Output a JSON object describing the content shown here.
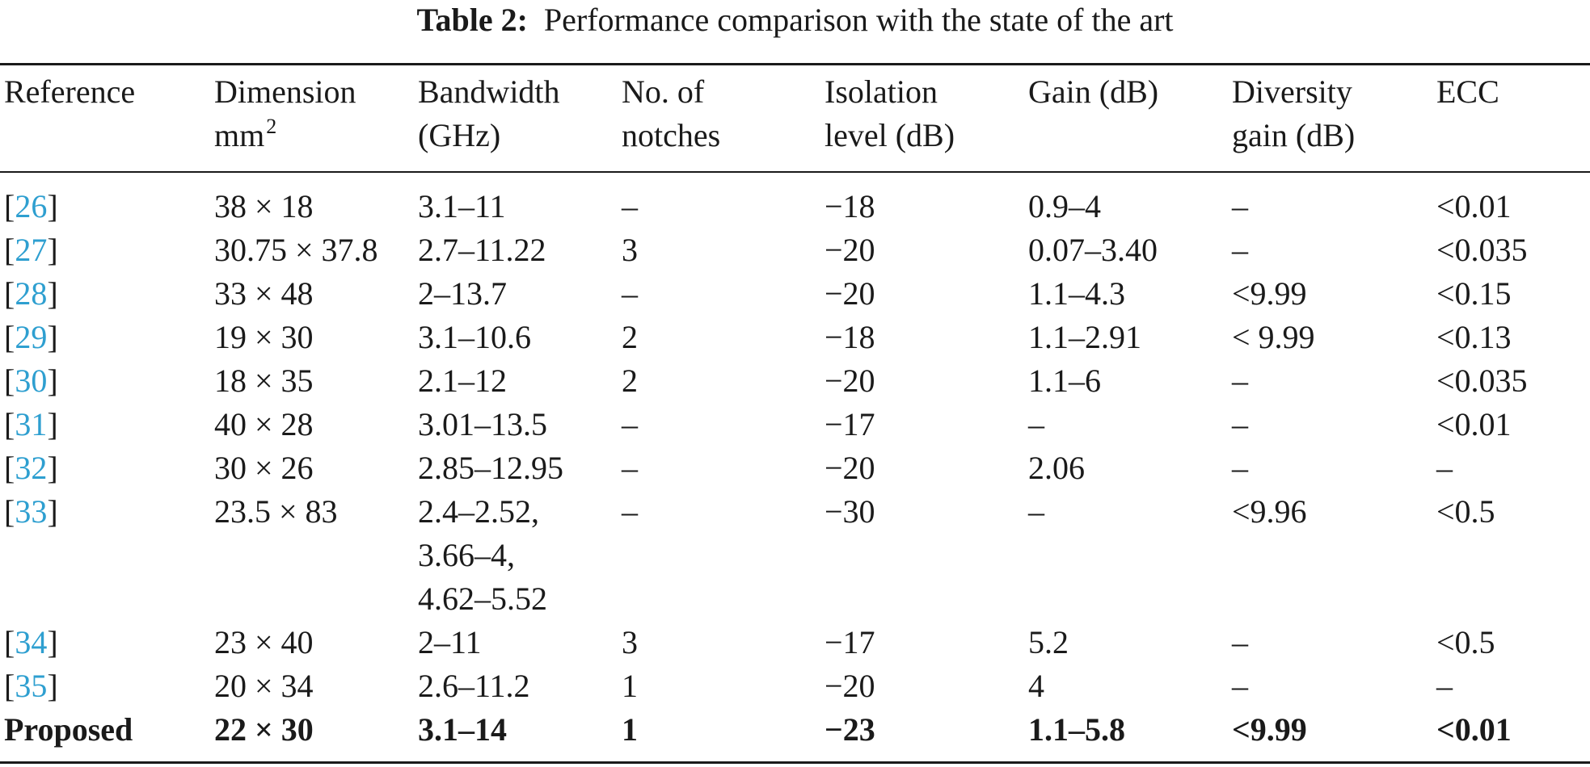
{
  "caption": {
    "label": "Table 2:",
    "text": "Performance comparison with the state of the art"
  },
  "table": {
    "headers": [
      {
        "line1": "Reference",
        "line2": ""
      },
      {
        "line1": "Dimension",
        "line2": "mm",
        "sup": "2"
      },
      {
        "line1": "Bandwidth",
        "line2": "(GHz)"
      },
      {
        "line1": "No. of",
        "line2": "notches"
      },
      {
        "line1": "Isolation",
        "line2": "level (dB)"
      },
      {
        "line1": "Gain (dB)",
        "line2": ""
      },
      {
        "line1": "Diversity",
        "line2": "gain (dB)"
      },
      {
        "line1": "ECC",
        "line2": ""
      }
    ],
    "rows": [
      {
        "ref": "26",
        "dimension": "38 × 18",
        "bandwidth": [
          "3.1–11"
        ],
        "notches": "–",
        "isolation": "−18",
        "gain": "0.9–4",
        "diversity": "–",
        "ecc": "<0.01"
      },
      {
        "ref": "27",
        "dimension": "30.75 × 37.8",
        "bandwidth": [
          "2.7–11.22"
        ],
        "notches": "3",
        "isolation": "−20",
        "gain": "0.07–3.40",
        "diversity": "–",
        "ecc": "<0.035"
      },
      {
        "ref": "28",
        "dimension": "33 × 48",
        "bandwidth": [
          "2–13.7"
        ],
        "notches": "–",
        "isolation": "−20",
        "gain": "1.1–4.3",
        "diversity": "<9.99",
        "ecc": "<0.15"
      },
      {
        "ref": "29",
        "dimension": "19 × 30",
        "bandwidth": [
          "3.1–10.6"
        ],
        "notches": "2",
        "isolation": "−18",
        "gain": "1.1–2.91",
        "diversity": "< 9.99",
        "ecc": "<0.13"
      },
      {
        "ref": "30",
        "dimension": "18 × 35",
        "bandwidth": [
          "2.1–12"
        ],
        "notches": "2",
        "isolation": "−20",
        "gain": "1.1–6",
        "diversity": "–",
        "ecc": "<0.035"
      },
      {
        "ref": "31",
        "dimension": "40 × 28",
        "bandwidth": [
          "3.01–13.5"
        ],
        "notches": "–",
        "isolation": "−17",
        "gain": "–",
        "diversity": "–",
        "ecc": "<0.01"
      },
      {
        "ref": "32",
        "dimension": "30 × 26",
        "bandwidth": [
          "2.85–12.95"
        ],
        "notches": "–",
        "isolation": "−20",
        "gain": "2.06",
        "diversity": "–",
        "ecc": "–"
      },
      {
        "ref": "33",
        "dimension": "23.5 × 83",
        "bandwidth": [
          "2.4–2.52,",
          "3.66–4,",
          "4.62–5.52"
        ],
        "notches": "–",
        "isolation": "−30",
        "gain": "–",
        "diversity": "<9.96",
        "ecc": "<0.5"
      },
      {
        "ref": "34",
        "dimension": "23 × 40",
        "bandwidth": [
          "2–11"
        ],
        "notches": "3",
        "isolation": "−17",
        "gain": "5.2",
        "diversity": "–",
        "ecc": "<0.5"
      },
      {
        "ref": "35",
        "dimension": "20 × 34",
        "bandwidth": [
          "2.6–11.2"
        ],
        "notches": "1",
        "isolation": "−20",
        "gain": "4",
        "diversity": "–",
        "ecc": "–"
      },
      {
        "ref": "Proposed",
        "dimension": "22 × 30",
        "bandwidth": [
          "3.1–14"
        ],
        "notches": "1",
        "isolation": "−23",
        "gain": "1.1–5.8",
        "diversity": "<9.99",
        "ecc": "<0.01"
      }
    ]
  },
  "colors": {
    "text": "#1a1a1a",
    "reference_link": "#2e9fd0",
    "background": "#ffffff"
  }
}
